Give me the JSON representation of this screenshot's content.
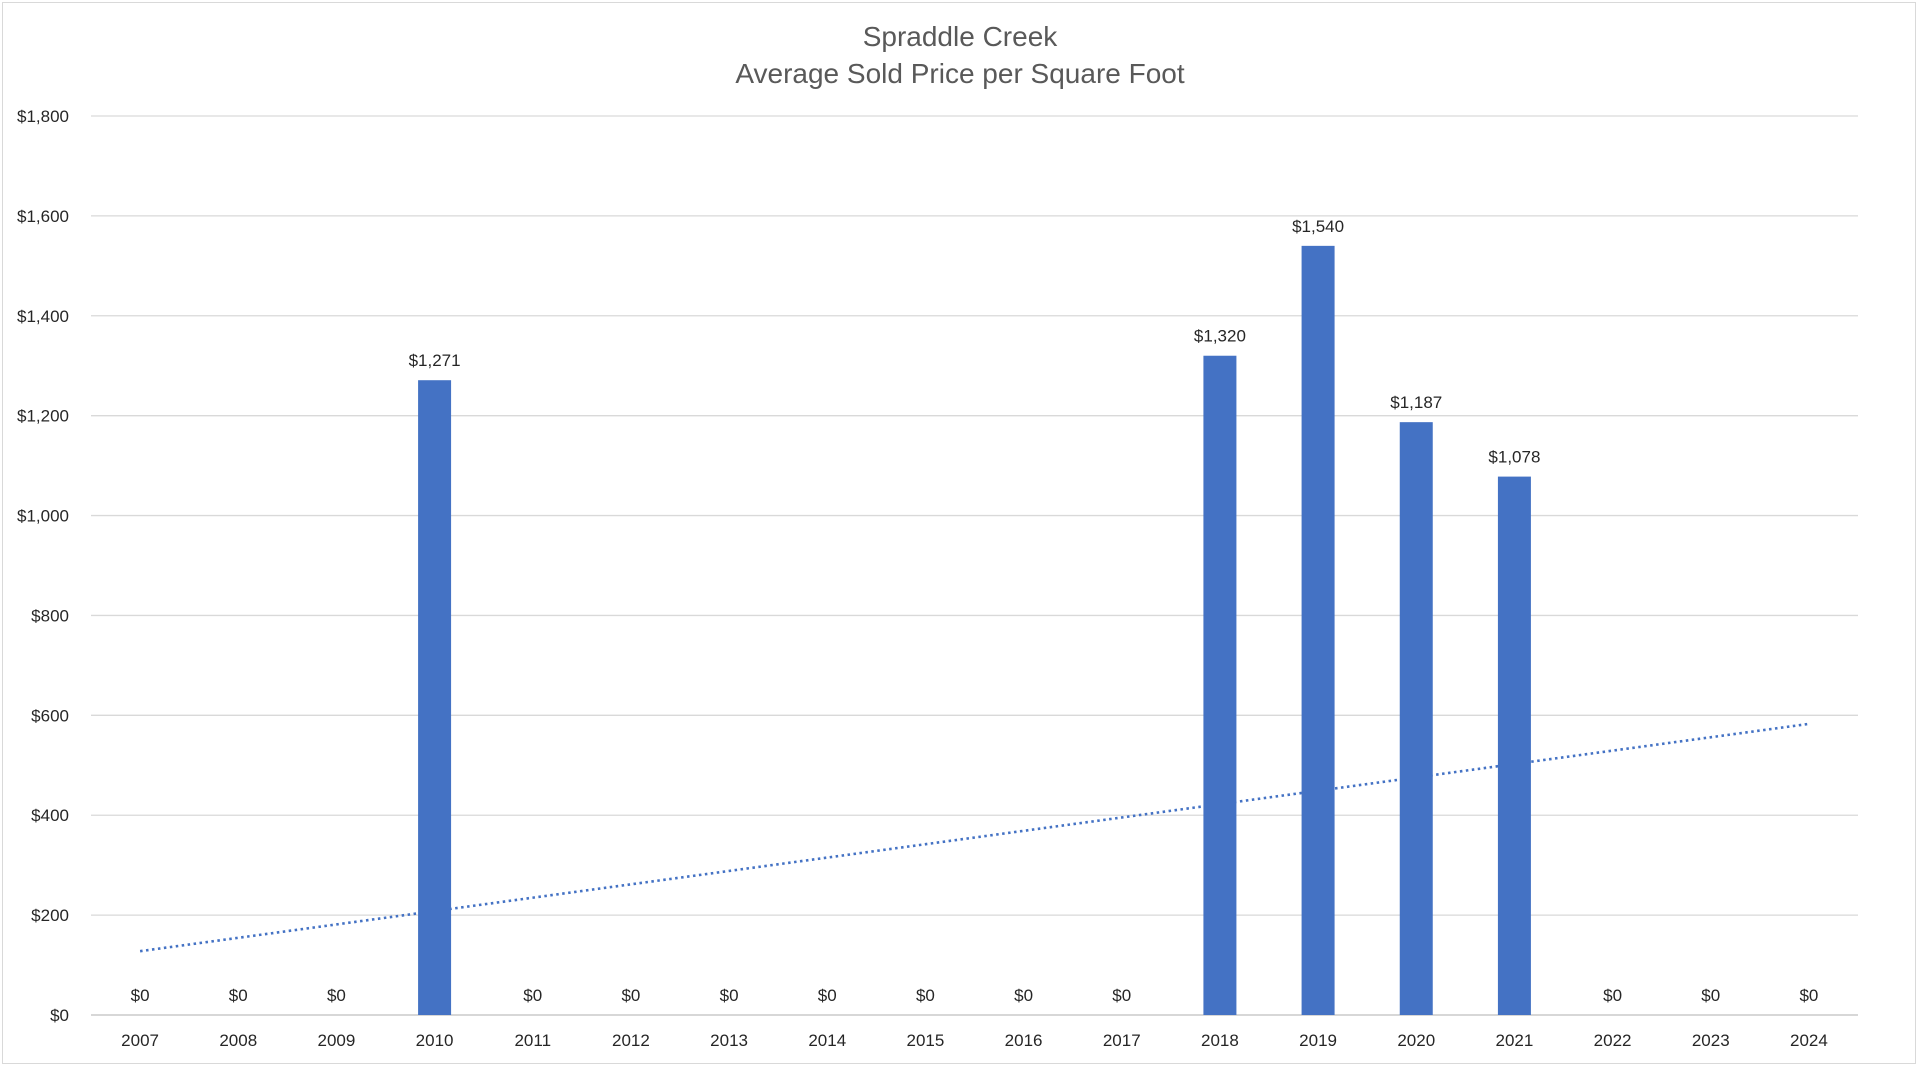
{
  "chart_data": {
    "type": "bar",
    "title": "Spraddle Creek",
    "subtitle": "Average Sold Price per Square Foot",
    "categories": [
      "2007",
      "2008",
      "2009",
      "2010",
      "2011",
      "2012",
      "2013",
      "2014",
      "2015",
      "2016",
      "2017",
      "2018",
      "2019",
      "2020",
      "2021",
      "2022",
      "2023",
      "2024"
    ],
    "values": [
      0,
      0,
      0,
      1271,
      0,
      0,
      0,
      0,
      0,
      0,
      0,
      1320,
      1540,
      1187,
      1078,
      0,
      0,
      0
    ],
    "data_labels": [
      "$0",
      "$0",
      "$0",
      "$1,271",
      "$0",
      "$0",
      "$0",
      "$0",
      "$0",
      "$0",
      "$0",
      "$1,320",
      "$1,540",
      "$1,187",
      "$1,078",
      "$0",
      "$0",
      "$0"
    ],
    "ylim": [
      0,
      1800
    ],
    "y_ticks": [
      0,
      200,
      400,
      600,
      800,
      1000,
      1200,
      1400,
      1600,
      1800
    ],
    "y_tick_labels": [
      "$0",
      "$200",
      "$400",
      "$600",
      "$800",
      "$1,000",
      "$1,200",
      "$1,400",
      "$1,600",
      "$1,800"
    ],
    "grid": true,
    "legend": "none",
    "bar_color": "#4472c4",
    "trendline": {
      "type": "linear",
      "style": "dotted",
      "color": "#4472c4"
    }
  }
}
